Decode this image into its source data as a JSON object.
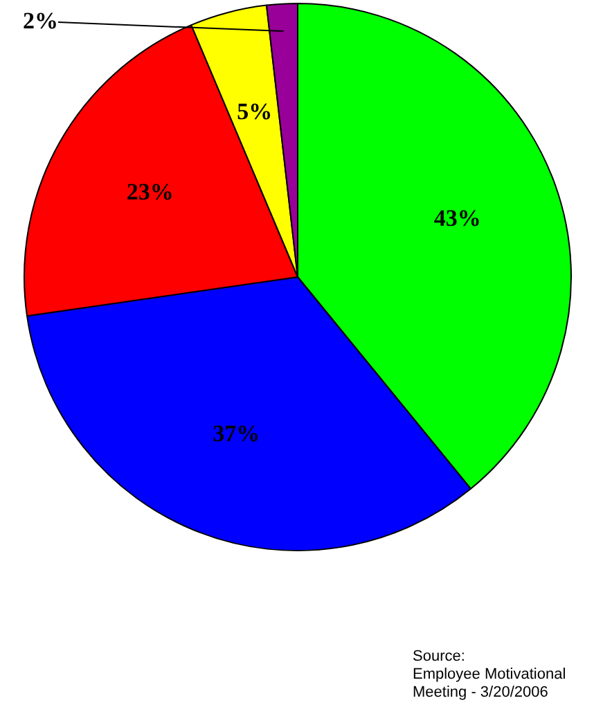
{
  "chart_data": {
    "type": "pie",
    "categories": [
      null,
      null,
      null,
      null,
      null
    ],
    "values": [
      43,
      37,
      23,
      5,
      2
    ],
    "colors": [
      "#00ff00",
      "#0000ff",
      "#ff0000",
      "#ffff00",
      "#990099"
    ],
    "value_labels": [
      "43%",
      "37%",
      "23%",
      "5%",
      "2%"
    ],
    "legend": false,
    "annotations": [
      "Source:\nEmployee Motivational\nMeeting - 3/20/2006"
    ]
  }
}
